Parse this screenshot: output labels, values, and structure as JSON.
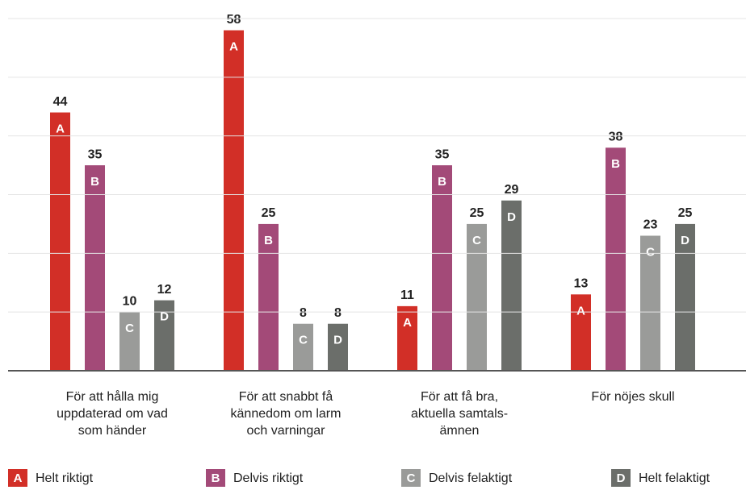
{
  "chart_data": {
    "type": "bar",
    "categories": [
      "För att hålla mig\nuppdaterad om vad\nsom händer",
      "För att snabbt få\nkännedom om larm\noch varningar",
      "För att få bra,\naktuella samtals-\nämnen",
      "För nöjes skull"
    ],
    "series": [
      {
        "name": "Helt riktigt",
        "letter": "A",
        "color": "#d22f27",
        "values": [
          44,
          58,
          11,
          13
        ]
      },
      {
        "name": "Delvis riktigt",
        "letter": "B",
        "color": "#a34a78",
        "values": [
          35,
          25,
          35,
          38
        ]
      },
      {
        "name": "Delvis felaktigt",
        "letter": "C",
        "color": "#9a9b99",
        "values": [
          10,
          8,
          25,
          23
        ]
      },
      {
        "name": "Helt felaktigt",
        "letter": "D",
        "color": "#6b6e6a",
        "values": [
          12,
          8,
          29,
          25
        ]
      }
    ],
    "ylim": [
      0,
      60
    ],
    "yticks": [
      0,
      10,
      20,
      30,
      40,
      50,
      60
    ],
    "grid": true
  }
}
